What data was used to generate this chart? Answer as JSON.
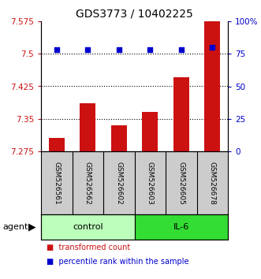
{
  "title": "GDS3773 / 10402225",
  "samples": [
    "GSM526561",
    "GSM526562",
    "GSM526602",
    "GSM526603",
    "GSM526605",
    "GSM526678"
  ],
  "bar_values": [
    7.305,
    7.385,
    7.335,
    7.365,
    7.445,
    7.575
  ],
  "percentile_values": [
    78,
    78,
    78,
    78,
    78,
    80
  ],
  "ylim_left": [
    7.275,
    7.575
  ],
  "ylim_right": [
    0,
    100
  ],
  "yticks_left": [
    7.275,
    7.35,
    7.425,
    7.5,
    7.575
  ],
  "ytick_labels_left": [
    "7.275",
    "7.35",
    "7.425",
    "7.5",
    "7.575"
  ],
  "yticks_right": [
    0,
    25,
    50,
    75,
    100
  ],
  "ytick_labels_right": [
    "0",
    "25",
    "50",
    "75",
    "100%"
  ],
  "hlines": [
    7.35,
    7.425,
    7.5
  ],
  "bar_color": "#cc1111",
  "dot_color": "#0000cc",
  "groups": [
    {
      "label": "control",
      "start": 0,
      "end": 3,
      "color": "#bbffbb"
    },
    {
      "label": "IL-6",
      "start": 3,
      "end": 6,
      "color": "#33dd33"
    }
  ],
  "group_bg_color": "#cccccc",
  "agent_label": "agent",
  "legend_bar_label": "transformed count",
  "legend_dot_label": "percentile rank within the sample",
  "left_tick_color": "#cc1111",
  "right_tick_color": "#0000cc",
  "title_fontsize": 10,
  "axis_fontsize": 7.5,
  "bar_bottom": 7.275
}
